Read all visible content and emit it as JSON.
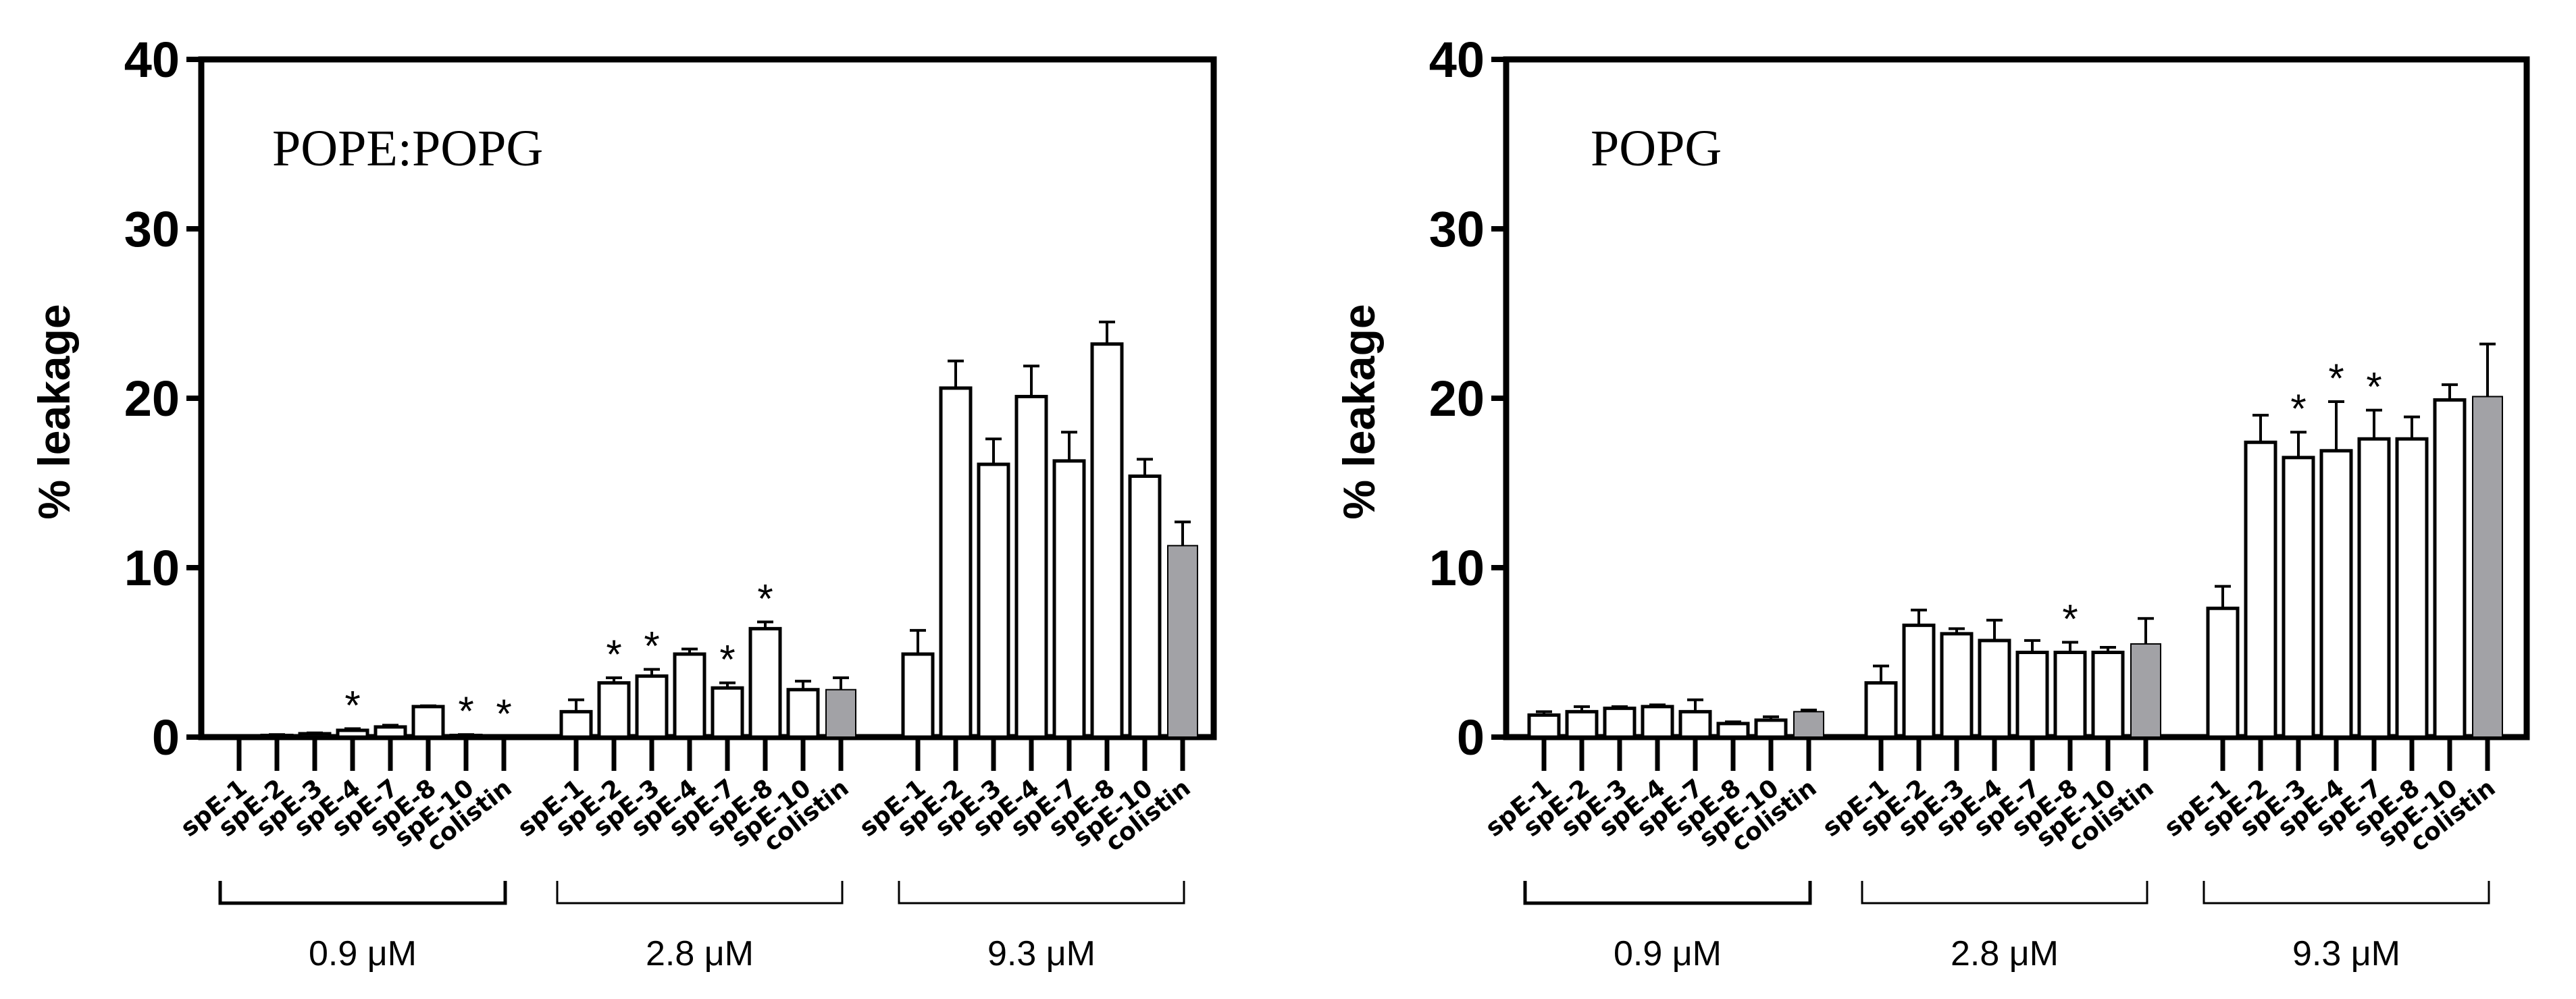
{
  "chart_data": [
    {
      "type": "bar",
      "title": "POPE:POPG",
      "ylabel": "% leakage",
      "ylim": [
        0,
        40
      ],
      "yticks": [
        "0",
        "10",
        "20",
        "30",
        "40"
      ],
      "grid": false,
      "categories": [
        "spE-1",
        "spE-2",
        "spE-3",
        "spE-4",
        "spE-7",
        "spE-8",
        "spE-10",
        "colistin"
      ],
      "groups": [
        {
          "label": "0.9 μM",
          "values": [
            0,
            0.1,
            0.2,
            0.4,
            0.6,
            1.8,
            0.1,
            0
          ],
          "errors": [
            0,
            0.05,
            0.05,
            0.1,
            0.1,
            0.05,
            0.05,
            0
          ],
          "significant": [
            false,
            false,
            false,
            true,
            false,
            false,
            true,
            true
          ]
        },
        {
          "label": "2.8 μM",
          "values": [
            1.5,
            3.2,
            3.6,
            4.9,
            2.9,
            6.4,
            2.8,
            2.8
          ],
          "errors": [
            0.7,
            0.3,
            0.4,
            0.3,
            0.3,
            0.4,
            0.5,
            0.7
          ],
          "significant": [
            false,
            true,
            true,
            false,
            true,
            true,
            false,
            false
          ]
        },
        {
          "label": "9.3 μM",
          "values": [
            4.9,
            20.6,
            16.1,
            20.1,
            16.3,
            23.2,
            15.4,
            11.3
          ],
          "errors": [
            1.4,
            1.6,
            1.5,
            1.8,
            1.7,
            1.3,
            1.0,
            1.4
          ],
          "significant": [
            false,
            false,
            false,
            false,
            false,
            false,
            false,
            false
          ]
        }
      ],
      "significance_marker": "*",
      "colors": {
        "peptide": "#ffffff",
        "colistin": "#a2a2a6",
        "outline": "#000000"
      }
    },
    {
      "type": "bar",
      "title": "POPG",
      "ylabel": "% leakage",
      "ylim": [
        0,
        40
      ],
      "yticks": [
        "0",
        "10",
        "20",
        "30",
        "40"
      ],
      "grid": false,
      "categories": [
        "spE-1",
        "spE-2",
        "spE-3",
        "spE-4",
        "spE-7",
        "spE-8",
        "spE-10",
        "colistin"
      ],
      "groups": [
        {
          "label": "0.9 μM",
          "values": [
            1.3,
            1.5,
            1.7,
            1.8,
            1.5,
            0.8,
            1.0,
            1.5
          ],
          "errors": [
            0.2,
            0.3,
            0.1,
            0.1,
            0.7,
            0.1,
            0.2,
            0.1
          ],
          "significant": [
            false,
            false,
            false,
            false,
            false,
            false,
            false,
            false
          ]
        },
        {
          "label": "2.8 μM",
          "values": [
            3.2,
            6.6,
            6.1,
            5.7,
            5.0,
            5.0,
            5.0,
            5.5
          ],
          "errors": [
            1.0,
            0.9,
            0.3,
            1.2,
            0.7,
            0.6,
            0.3,
            1.5
          ],
          "significant": [
            false,
            false,
            false,
            false,
            false,
            true,
            false,
            false
          ]
        },
        {
          "label": "9.3 μM",
          "values": [
            7.6,
            17.4,
            16.5,
            16.9,
            17.6,
            17.6,
            19.9,
            20.1
          ],
          "errors": [
            1.3,
            1.6,
            1.5,
            2.9,
            1.7,
            1.3,
            0.9,
            3.1
          ],
          "significant": [
            false,
            false,
            true,
            true,
            true,
            false,
            false,
            false
          ]
        }
      ],
      "significance_marker": "*",
      "colors": {
        "peptide": "#ffffff",
        "colistin": "#a2a2a6",
        "outline": "#000000"
      }
    }
  ]
}
